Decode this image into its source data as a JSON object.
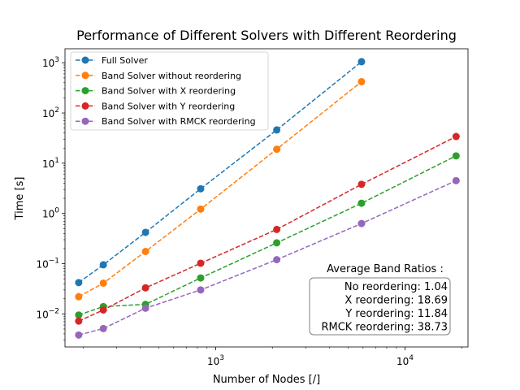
{
  "chart_data": {
    "type": "line",
    "title": "Performance of Different Solvers with Different Reordering",
    "xlabel": "Number of Nodes [/]",
    "ylabel": "Time [s]",
    "xscale": "log",
    "yscale": "log",
    "xlim": [
      160,
      21500
    ],
    "ylim": [
      0.0022,
      1900
    ],
    "x_ticks": [
      {
        "value": 1000,
        "base": "10",
        "exp": "3"
      },
      {
        "value": 10000,
        "base": "10",
        "exp": "4"
      }
    ],
    "y_ticks": [
      {
        "value": 0.01,
        "base": "10",
        "exp": "−2"
      },
      {
        "value": 0.1,
        "base": "10",
        "exp": "−1"
      },
      {
        "value": 1,
        "base": "10",
        "exp": "0"
      },
      {
        "value": 10,
        "base": "10",
        "exp": "1"
      },
      {
        "value": 100,
        "base": "10",
        "exp": "2"
      },
      {
        "value": 1000,
        "base": "10",
        "exp": "3"
      }
    ],
    "grid": false,
    "legend_position": "top-left",
    "series": [
      {
        "name": "Full Solver",
        "color": "#1f77b4",
        "x": [
          189,
          255,
          426,
          833,
          2101,
          5891
        ],
        "y": [
          0.042,
          0.095,
          0.42,
          3.1,
          46,
          1050
        ]
      },
      {
        "name": "Band Solver without reordering",
        "color": "#ff7f0e",
        "x": [
          189,
          255,
          426,
          833,
          2101,
          5891
        ],
        "y": [
          0.022,
          0.041,
          0.175,
          1.22,
          19,
          420
        ]
      },
      {
        "name": "Band Solver with X reordering",
        "color": "#2ca02c",
        "x": [
          189,
          255,
          426,
          833,
          2101,
          5891,
          18600
        ],
        "y": [
          0.0095,
          0.014,
          0.0155,
          0.052,
          0.26,
          1.6,
          14
        ]
      },
      {
        "name": "Band Solver with Y reordering",
        "color": "#d62728",
        "x": [
          189,
          255,
          426,
          833,
          2101,
          5891,
          18600
        ],
        "y": [
          0.0072,
          0.012,
          0.033,
          0.102,
          0.48,
          3.8,
          34
        ]
      },
      {
        "name": "Band Solver with RMCK reordering",
        "color": "#9467bd",
        "x": [
          189,
          255,
          426,
          833,
          2101,
          5891,
          18600
        ],
        "y": [
          0.0038,
          0.0051,
          0.013,
          0.03,
          0.12,
          0.63,
          4.5
        ]
      }
    ],
    "annotation": {
      "heading": "Average Band Ratios :",
      "lines": [
        "No reordering: 1.04",
        "X reordering: 18.69",
        "Y reordering: 11.84",
        "RMCK reordering: 38.73"
      ]
    }
  }
}
